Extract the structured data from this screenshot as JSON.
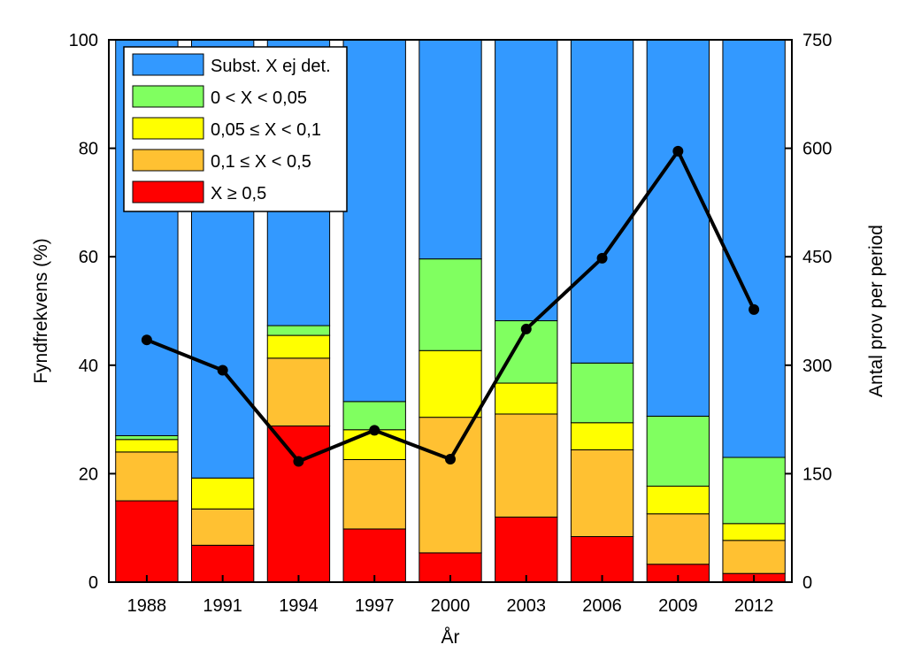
{
  "chart_data": {
    "type": "bar",
    "stacked": true,
    "categories": [
      "1988",
      "1991",
      "1994",
      "1997",
      "2000",
      "2003",
      "2006",
      "2009",
      "2012"
    ],
    "xlabel": "År",
    "ylabel": "Fyndfrekvens (%)",
    "ylabel_right": "Antal prov per period",
    "ylim": [
      0,
      100
    ],
    "ylim_right": [
      0,
      750
    ],
    "yticks": [
      0,
      20,
      40,
      60,
      80,
      100
    ],
    "yticks_right": [
      0,
      150,
      300,
      450,
      600,
      750
    ],
    "legend_position": "top-left",
    "grid": false,
    "series": [
      {
        "name": "X ≥ 0,5",
        "color": "#ff0000",
        "values": [
          15,
          6.8,
          28.8,
          9.8,
          5.4,
          12,
          8.4,
          3.3,
          1.6
        ]
      },
      {
        "name": "0,1 ≤ X < 0,5",
        "color": "#ffc132",
        "values": [
          9,
          6.7,
          12.5,
          12.8,
          25,
          19,
          16,
          9.3,
          6.1
        ]
      },
      {
        "name": "0,05 ≤ X < 0,1",
        "color": "#ffff00",
        "values": [
          2.3,
          5.7,
          4.2,
          5.5,
          12.3,
          5.7,
          5,
          5.1,
          3.1
        ]
      },
      {
        "name": "0 < X < 0,05",
        "color": "#80ff60",
        "values": [
          0.7,
          0,
          1.8,
          5.2,
          16.9,
          11.5,
          11,
          12.9,
          12.2
        ]
      },
      {
        "name": "Subst. X ej det.",
        "color": "#3399ff",
        "values": [
          73,
          80.8,
          52.7,
          66.7,
          40.4,
          51.8,
          59.6,
          69.4,
          77
        ]
      }
    ],
    "line_series": {
      "axis": "right",
      "color": "#000000",
      "values": [
        335,
        293,
        167,
        210,
        170,
        350,
        448,
        596,
        377
      ]
    }
  }
}
